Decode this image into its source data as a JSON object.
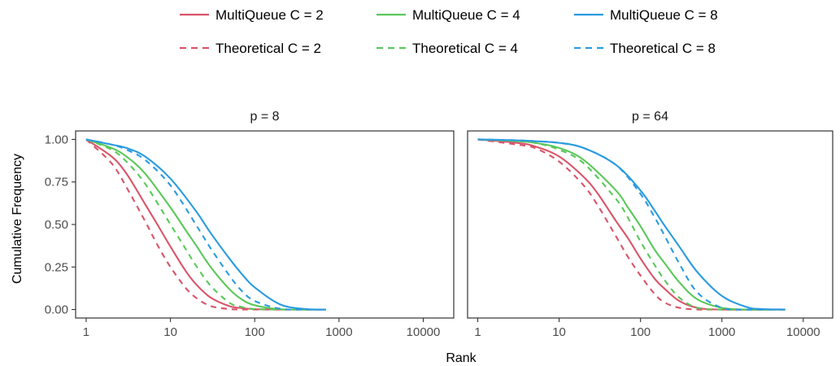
{
  "chart_data": {
    "type": "line",
    "xlabel": "Rank",
    "ylabel": "Cumulative Frequency",
    "x_scale": "log10",
    "xlim": [
      0.75,
      23000
    ],
    "ylim": [
      -0.05,
      1.05
    ],
    "x_ticks": [
      1,
      10,
      100,
      1000,
      10000
    ],
    "x_tick_labels": [
      "1",
      "10",
      "100",
      "1000",
      "10000"
    ],
    "y_ticks": [
      0.0,
      0.25,
      0.5,
      0.75,
      1.0
    ],
    "y_tick_labels": [
      "0.00",
      "0.25",
      "0.50",
      "0.75",
      "1.00"
    ],
    "grid": false,
    "legend_position": "top",
    "legend": [
      {
        "label": "MultiQueue C = 2",
        "color": "#d9546a",
        "dash": "solid"
      },
      {
        "label": "MultiQueue C = 4",
        "color": "#5ac85a",
        "dash": "solid"
      },
      {
        "label": "MultiQueue C = 8",
        "color": "#2a9be0",
        "dash": "solid"
      },
      {
        "label": "Theoretical C = 2",
        "color": "#d9546a",
        "dash": "dashed"
      },
      {
        "label": "Theoretical C = 4",
        "color": "#5ac85a",
        "dash": "dashed"
      },
      {
        "label": "Theoretical C = 8",
        "color": "#2a9be0",
        "dash": "dashed"
      }
    ],
    "panels": [
      {
        "title": "p = 8",
        "series": [
          {
            "name": "MultiQueue C = 2",
            "color": "#d9546a",
            "dash": "solid",
            "x": [
              1,
              2,
              3,
              5,
              7,
              10,
              15,
              20,
              30,
              50,
              70,
              100,
              200,
              700
            ],
            "y": [
              1.0,
              0.9,
              0.8,
              0.62,
              0.5,
              0.37,
              0.23,
              0.15,
              0.07,
              0.02,
              0.008,
              0.002,
              0.0,
              0.0
            ]
          },
          {
            "name": "Theoretical C = 2",
            "color": "#d9546a",
            "dash": "dashed",
            "x": [
              1,
              2,
              3,
              5,
              7,
              10,
              15,
              20,
              30,
              50,
              70,
              100,
              200,
              700
            ],
            "y": [
              1.0,
              0.86,
              0.72,
              0.52,
              0.38,
              0.25,
              0.13,
              0.07,
              0.02,
              0.003,
              0.0,
              0.0,
              0.0,
              0.0
            ]
          },
          {
            "name": "MultiQueue C = 4",
            "color": "#5ac85a",
            "dash": "solid",
            "x": [
              1,
              2,
              3,
              5,
              10,
              15,
              20,
              30,
              50,
              70,
              100,
              200,
              700
            ],
            "y": [
              1.0,
              0.95,
              0.9,
              0.8,
              0.6,
              0.47,
              0.38,
              0.25,
              0.12,
              0.06,
              0.025,
              0.002,
              0.0
            ]
          },
          {
            "name": "Theoretical C = 4",
            "color": "#5ac85a",
            "dash": "dashed",
            "x": [
              1,
              2,
              3,
              5,
              10,
              15,
              20,
              30,
              50,
              70,
              100,
              200,
              700
            ],
            "y": [
              1.0,
              0.94,
              0.87,
              0.74,
              0.5,
              0.36,
              0.26,
              0.14,
              0.04,
              0.015,
              0.003,
              0.0,
              0.0
            ]
          },
          {
            "name": "MultiQueue C = 8",
            "color": "#2a9be0",
            "dash": "solid",
            "x": [
              1,
              2,
              3,
              5,
              10,
              20,
              30,
              50,
              70,
              100,
              200,
              400,
              700
            ],
            "y": [
              1.0,
              0.97,
              0.95,
              0.9,
              0.77,
              0.58,
              0.45,
              0.3,
              0.21,
              0.13,
              0.03,
              0.003,
              0.0
            ]
          },
          {
            "name": "Theoretical C = 8",
            "color": "#2a9be0",
            "dash": "dashed",
            "x": [
              1,
              2,
              3,
              5,
              10,
              20,
              30,
              50,
              70,
              100,
              200,
              400,
              700
            ],
            "y": [
              1.0,
              0.97,
              0.94,
              0.88,
              0.73,
              0.5,
              0.36,
              0.2,
              0.11,
              0.05,
              0.005,
              0.0,
              0.0
            ]
          }
        ]
      },
      {
        "title": "p = 64",
        "series": [
          {
            "name": "MultiQueue C = 2",
            "color": "#d9546a",
            "dash": "solid",
            "x": [
              1,
              3,
              5,
              10,
              20,
              30,
              50,
              70,
              100,
              150,
              200,
              300,
              500,
              1000,
              6000
            ],
            "y": [
              1.0,
              0.98,
              0.96,
              0.9,
              0.78,
              0.68,
              0.52,
              0.42,
              0.3,
              0.18,
              0.12,
              0.05,
              0.01,
              0.0,
              0.0
            ]
          },
          {
            "name": "Theoretical C = 2",
            "color": "#d9546a",
            "dash": "dashed",
            "x": [
              1,
              3,
              5,
              10,
              20,
              30,
              50,
              70,
              100,
              150,
              200,
              300,
              500,
              1000,
              6000
            ],
            "y": [
              1.0,
              0.97,
              0.95,
              0.87,
              0.73,
              0.61,
              0.43,
              0.31,
              0.2,
              0.09,
              0.04,
              0.01,
              0.0,
              0.0,
              0.0
            ]
          },
          {
            "name": "MultiQueue C = 4",
            "color": "#5ac85a",
            "dash": "solid",
            "x": [
              1,
              3,
              5,
              10,
              20,
              50,
              70,
              100,
              150,
              200,
              300,
              500,
              1000,
              2000,
              6000
            ],
            "y": [
              1.0,
              0.99,
              0.98,
              0.95,
              0.88,
              0.7,
              0.6,
              0.49,
              0.35,
              0.27,
              0.16,
              0.06,
              0.01,
              0.0,
              0.0
            ]
          },
          {
            "name": "Theoretical C = 4",
            "color": "#5ac85a",
            "dash": "dashed",
            "x": [
              1,
              3,
              5,
              10,
              20,
              50,
              70,
              100,
              150,
              200,
              300,
              500,
              1000,
              2000,
              6000
            ],
            "y": [
              1.0,
              0.99,
              0.98,
              0.94,
              0.86,
              0.65,
              0.54,
              0.4,
              0.26,
              0.17,
              0.07,
              0.01,
              0.0,
              0.0,
              0.0
            ]
          },
          {
            "name": "MultiQueue C = 8",
            "color": "#2a9be0",
            "dash": "solid",
            "x": [
              1,
              3,
              5,
              10,
              20,
              50,
              100,
              150,
              200,
              300,
              500,
              1000,
              2000,
              3000,
              6000
            ],
            "y": [
              1.0,
              0.995,
              0.99,
              0.98,
              0.95,
              0.85,
              0.7,
              0.58,
              0.49,
              0.37,
              0.22,
              0.08,
              0.015,
              0.003,
              0.0
            ]
          },
          {
            "name": "Theoretical C = 8",
            "color": "#2a9be0",
            "dash": "dashed",
            "x": [
              1,
              3,
              5,
              10,
              20,
              50,
              100,
              150,
              200,
              300,
              500,
              1000,
              2000,
              3000,
              6000
            ],
            "y": [
              1.0,
              0.995,
              0.99,
              0.98,
              0.95,
              0.85,
              0.68,
              0.54,
              0.43,
              0.27,
              0.1,
              0.01,
              0.0,
              0.0,
              0.0
            ]
          }
        ]
      }
    ]
  }
}
